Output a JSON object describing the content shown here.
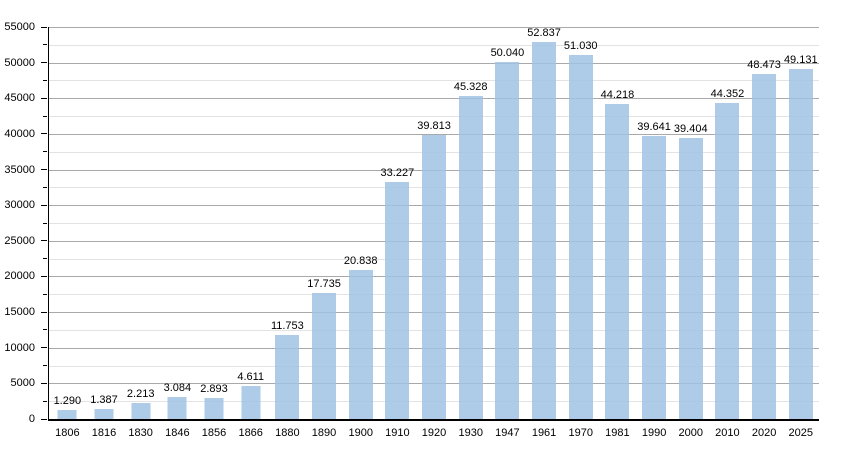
{
  "chart_data": {
    "type": "bar",
    "title": "",
    "xlabel": "",
    "ylabel": "",
    "categories": [
      "1806",
      "1816",
      "1830",
      "1846",
      "1856",
      "1866",
      "1880",
      "1890",
      "1900",
      "1910",
      "1920",
      "1930",
      "1947",
      "1961",
      "1970",
      "1981",
      "1990",
      "2000",
      "2010",
      "2020",
      "2025"
    ],
    "values": [
      1290,
      1387,
      2213,
      3084,
      2893,
      4611,
      11753,
      17735,
      20838,
      33227,
      39813,
      45328,
      50040,
      52837,
      51030,
      44218,
      39641,
      39404,
      44352,
      48473,
      49131
    ],
    "value_labels": [
      "1.290",
      "1.387",
      "2.213",
      "3.084",
      "2.893",
      "4.611",
      "11.753",
      "17.735",
      "20.838",
      "33.227",
      "39.813",
      "45.328",
      "50.040",
      "52.837",
      "51.030",
      "44.218",
      "39.641",
      "39.404",
      "44.352",
      "48.473",
      "49.131"
    ],
    "ylim": [
      0,
      55000
    ],
    "y_major_step": 5000,
    "y_minor_step": 2500,
    "y_tick_labels": [
      "0",
      "5000",
      "10000",
      "15000",
      "20000",
      "25000",
      "30000",
      "35000",
      "40000",
      "45000",
      "50000",
      "55000"
    ],
    "grid": "on",
    "legend": "none",
    "bar_color": "#aecbe8",
    "bar_color_rgba": "rgba(160,194,228,0.85)",
    "major_grid_color": "#a9a9a9",
    "minor_grid_color": "#e3e3e3",
    "axis_color": "#000000",
    "label_color": "#000000"
  }
}
